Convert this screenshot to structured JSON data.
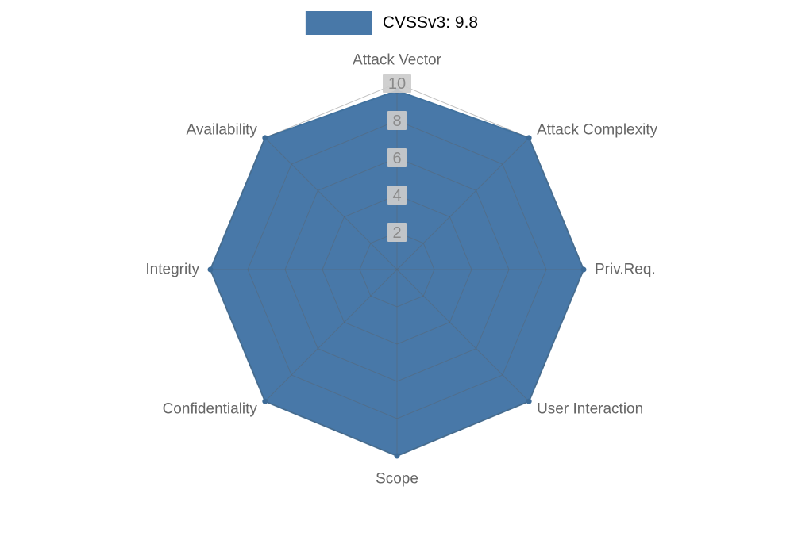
{
  "legend": {
    "label": "CVSSv3: 9.8"
  },
  "chart_data": {
    "type": "radar",
    "title": "",
    "categories": [
      "Attack Vector",
      "Attack Complexity",
      "Priv.Req.",
      "User Interaction",
      "Scope",
      "Confidentiality",
      "Integrity",
      "Availability"
    ],
    "series": [
      {
        "name": "CVSSv3: 9.8",
        "values": [
          9.6,
          10,
          10,
          10,
          10,
          10,
          10,
          10
        ]
      }
    ],
    "rlim": [
      0,
      10
    ],
    "ticks": [
      2,
      4,
      6,
      8,
      10
    ],
    "grid": true,
    "legend_position": "top-center",
    "colors": {
      "fill": "#4878a8",
      "stroke": "#41729f",
      "marker": "#3d6b97",
      "grid_line": "#5f5f5f",
      "axis_label": "#666666",
      "tick_text": "#8a8a8a",
      "tick_bg": "#cccccc",
      "legend_text": "#333333"
    },
    "layout": {
      "center": [
        500,
        340
      ],
      "radius": 235,
      "start_angle_deg": -90,
      "clockwise": true
    }
  }
}
